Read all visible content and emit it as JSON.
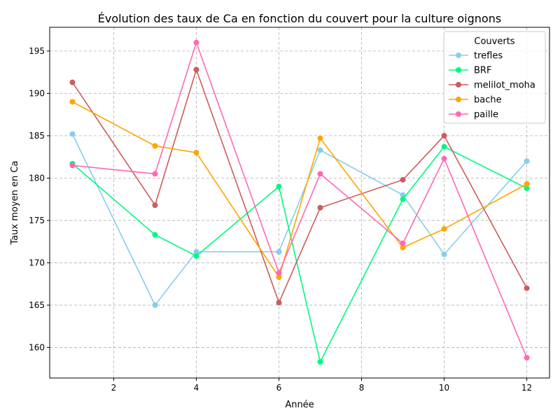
{
  "chart_data": {
    "type": "line",
    "title": "Évolution des taux de Ca en fonction du couvert pour la culture oignons",
    "xlabel": "Année",
    "ylabel": "Taux moyen en Ca",
    "xlim": [
      0.45,
      12.55
    ],
    "ylim": [
      156.4,
      197.8
    ],
    "xticks": [
      2,
      4,
      6,
      8,
      10,
      12
    ],
    "yticks": [
      160,
      165,
      170,
      175,
      180,
      185,
      190,
      195
    ],
    "grid": true,
    "legend": {
      "title": "Couverts",
      "position": "top-right"
    },
    "series": [
      {
        "name": "trefles",
        "color": "#87CEEB",
        "x": [
          1,
          3,
          4,
          6,
          7,
          9,
          10,
          12
        ],
        "y": [
          185.2,
          165.0,
          171.3,
          171.3,
          183.3,
          178.0,
          171.0,
          182.0
        ]
      },
      {
        "name": "BRF",
        "color": "#00FA7F",
        "x": [
          1,
          3,
          4,
          6,
          7,
          9,
          10,
          12
        ],
        "y": [
          181.7,
          173.3,
          170.8,
          179.0,
          158.3,
          177.5,
          183.7,
          178.8
        ]
      },
      {
        "name": "melilot_moha",
        "color": "#CD5C5C",
        "x": [
          1,
          3,
          4,
          6,
          7,
          9,
          10,
          12
        ],
        "y": [
          191.3,
          176.8,
          192.8,
          165.3,
          176.5,
          179.8,
          185.0,
          167.0
        ]
      },
      {
        "name": "bache",
        "color": "#FFA500",
        "x": [
          1,
          3,
          4,
          6,
          7,
          9,
          10,
          12
        ],
        "y": [
          189.0,
          183.8,
          183.0,
          168.3,
          184.7,
          171.8,
          174.0,
          179.3
        ]
      },
      {
        "name": "paille",
        "color": "#FF69B4",
        "x": [
          1,
          3,
          4,
          6,
          7,
          9,
          10,
          12
        ],
        "y": [
          181.5,
          180.5,
          196.0,
          168.8,
          180.5,
          172.3,
          182.3,
          158.8
        ]
      }
    ]
  }
}
